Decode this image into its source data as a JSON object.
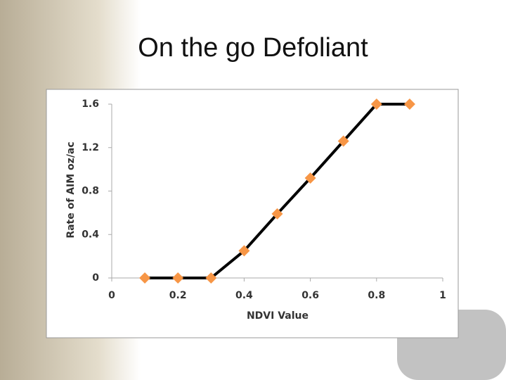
{
  "chart_data": {
    "type": "line",
    "title": "On the go Defoliant",
    "x_label": "NDVI Value",
    "y_label": "Rate of AIM oz/ac",
    "x": [
      0.1,
      0.2,
      0.3,
      0.4,
      0.5,
      0.6,
      0.7,
      0.8,
      0.9
    ],
    "series": [
      {
        "name": "Rate",
        "color": "#000000",
        "marker_color": "#f79646",
        "values": [
          0,
          0,
          0,
          0.25,
          0.59,
          0.92,
          1.26,
          1.6,
          1.6
        ]
      }
    ],
    "xlim": [
      0,
      1
    ],
    "xticks": [
      0,
      0.2,
      0.4,
      0.6,
      0.8,
      1
    ],
    "ylim": [
      0,
      1.6
    ],
    "yticks": [
      0,
      0.4,
      0.8,
      1.2,
      1.6
    ]
  }
}
